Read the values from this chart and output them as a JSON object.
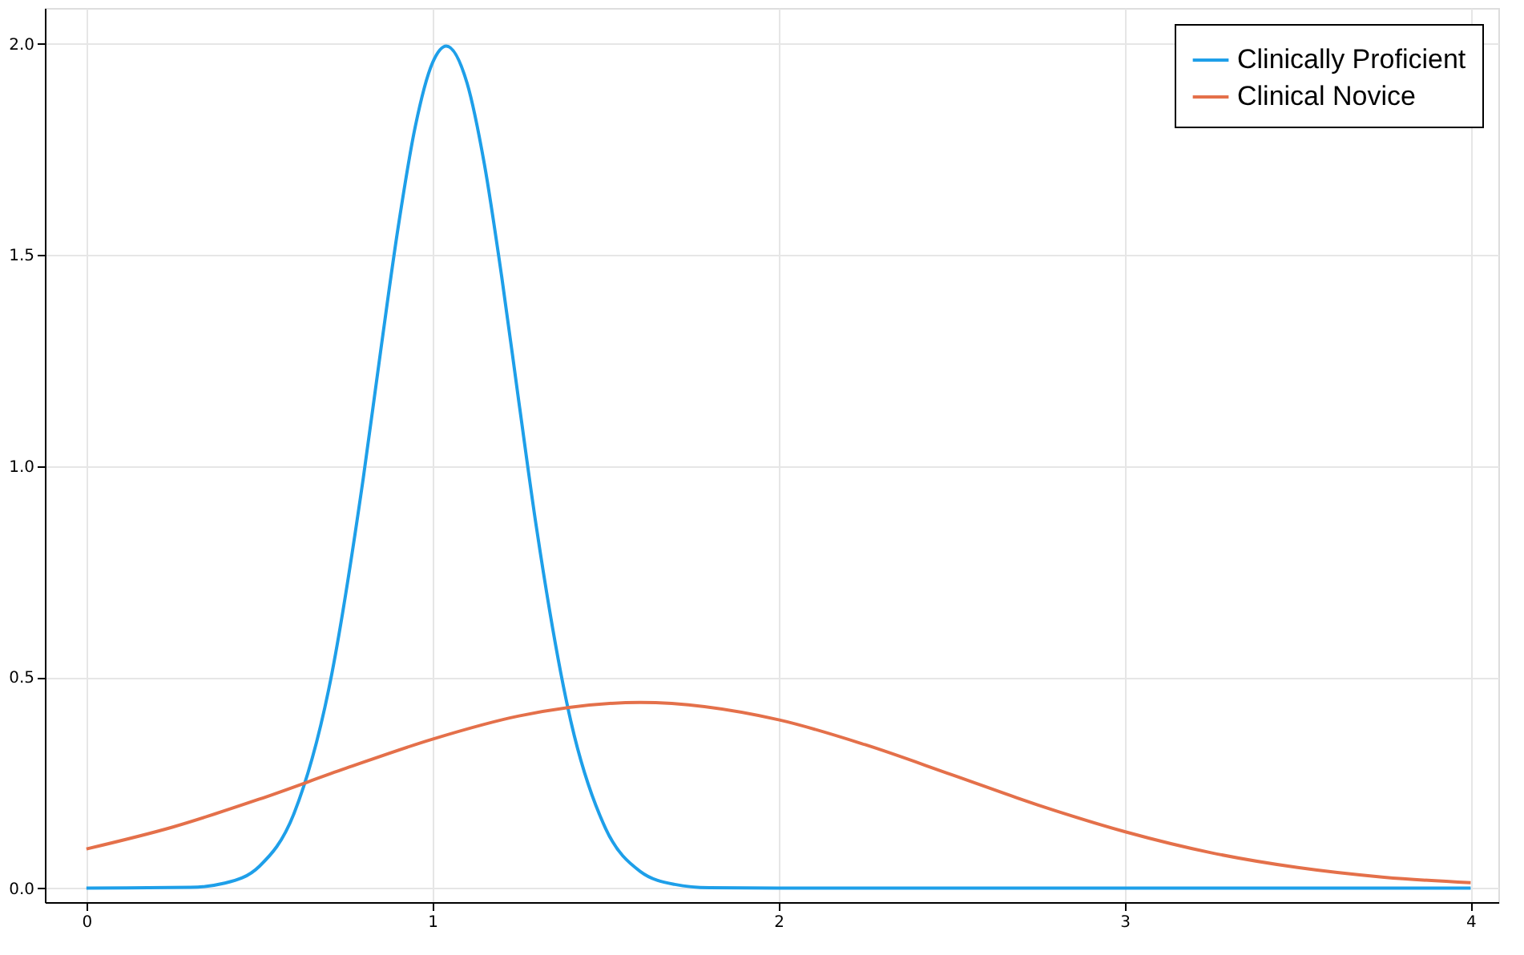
{
  "chart_data": {
    "type": "line",
    "xlim": [
      -0.12,
      4.08
    ],
    "ylim": [
      -0.033,
      2.085
    ],
    "xticks": [
      0,
      1,
      2,
      3,
      4
    ],
    "yticks": [
      {
        "value": 0,
        "label": "0.0"
      },
      {
        "value": 0.5,
        "label": "0.5"
      },
      {
        "value": 1,
        "label": "1.0"
      },
      {
        "value": 1.5,
        "label": "1.5"
      },
      {
        "value": 2,
        "label": "2.0"
      }
    ],
    "grid": true,
    "legend": "top right",
    "line_style": "solid",
    "marker": "none",
    "series": [
      {
        "name": "Clinically Proficient",
        "color": "#1e9fe9",
        "x": [
          0,
          0.3,
          0.4,
          0.5,
          0.6,
          0.7,
          0.8,
          0.85,
          0.9,
          0.95,
          1.0,
          1.04,
          1.1,
          1.15,
          1.2,
          1.25,
          1.3,
          1.4,
          1.5,
          1.6,
          1.7,
          1.8,
          2.0,
          3.0,
          4.0
        ],
        "values": [
          0,
          0.002,
          0.012,
          0.052,
          0.177,
          0.47,
          0.971,
          1.271,
          1.561,
          1.803,
          1.955,
          1.995,
          1.907,
          1.715,
          1.449,
          1.15,
          0.857,
          0.395,
          0.142,
          0.04,
          0.009,
          0.001,
          0,
          0,
          0
        ]
      },
      {
        "name": "Clinical Novice",
        "color": "#e4704a",
        "x": [
          0,
          0.25,
          0.5,
          0.75,
          1.0,
          1.25,
          1.6,
          2.0,
          2.25,
          2.5,
          2.75,
          3.0,
          3.25,
          3.5,
          3.75,
          4.0
        ],
        "values": [
          0.093,
          0.145,
          0.211,
          0.284,
          0.353,
          0.408,
          0.44,
          0.399,
          0.34,
          0.269,
          0.197,
          0.134,
          0.084,
          0.049,
          0.026,
          0.013
        ]
      }
    ]
  }
}
